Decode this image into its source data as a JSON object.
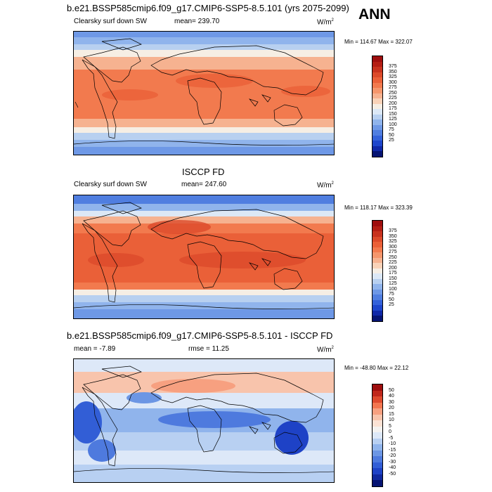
{
  "season": "ANN",
  "colors": {
    "abs": [
      "#9e0e0e",
      "#b41e14",
      "#c8321e",
      "#dc4a2a",
      "#ea6038",
      "#f27a4e",
      "#f5966c",
      "#f6b290",
      "#f9d2b8",
      "#f6eee4",
      "#dce8f6",
      "#b8d0f0",
      "#90b4ec",
      "#6e98e6",
      "#507ee0",
      "#3462da",
      "#1e46cc",
      "#1028a8",
      "#061473"
    ],
    "diff": [
      "#9e0e0e",
      "#c0281c",
      "#de4a2e",
      "#f27650",
      "#f7a080",
      "#f8c4ac",
      "#fbe2d4",
      "#f4f2f0",
      "#dde8f8",
      "#b8d0f2",
      "#90b4ec",
      "#6c96e4",
      "#4e7ade",
      "#325ed6",
      "#1e42c6",
      "#10289e",
      "#061473"
    ]
  },
  "panels": [
    {
      "title": "b.e21.BSSP585cmip6.f09_g17.CMIP6-SSP5-8.5.101 (yrs 2075-2099)",
      "left_label": "Clearsky surf down SW",
      "center_label": "mean= 239.70",
      "units": "W/m",
      "units_sup": "2",
      "minmax": "Min = 114.67 Max = 322.07",
      "ticks": [
        "375",
        "350",
        "325",
        "300",
        "275",
        "250",
        "225",
        "200",
        "175",
        "150",
        "125",
        "100",
        "75",
        "50",
        "25"
      ]
    },
    {
      "title": "ISCCP FD",
      "left_label": "Clearsky surf down SW",
      "center_label": "mean= 247.60",
      "units": "W/m",
      "units_sup": "2",
      "minmax": "Min = 118.17 Max = 323.39",
      "ticks": [
        "375",
        "350",
        "325",
        "300",
        "275",
        "250",
        "225",
        "200",
        "175",
        "150",
        "125",
        "100",
        "75",
        "50",
        "25"
      ]
    },
    {
      "title": "b.e21.BSSP585cmip6.f09_g17.CMIP6-SSP5-8.5.101 - ISCCP FD",
      "left_label": "mean =  -7.89",
      "center_label": "rmse =  11.25",
      "units": "W/m",
      "units_sup": "2",
      "minmax": "Min = -48.80 Max =  22.12",
      "ticks": [
        "50",
        "40",
        "30",
        "20",
        "15",
        "10",
        "5",
        "0",
        "-5",
        "-10",
        "-15",
        "-20",
        "-30",
        "-40",
        "-50"
      ]
    }
  ]
}
